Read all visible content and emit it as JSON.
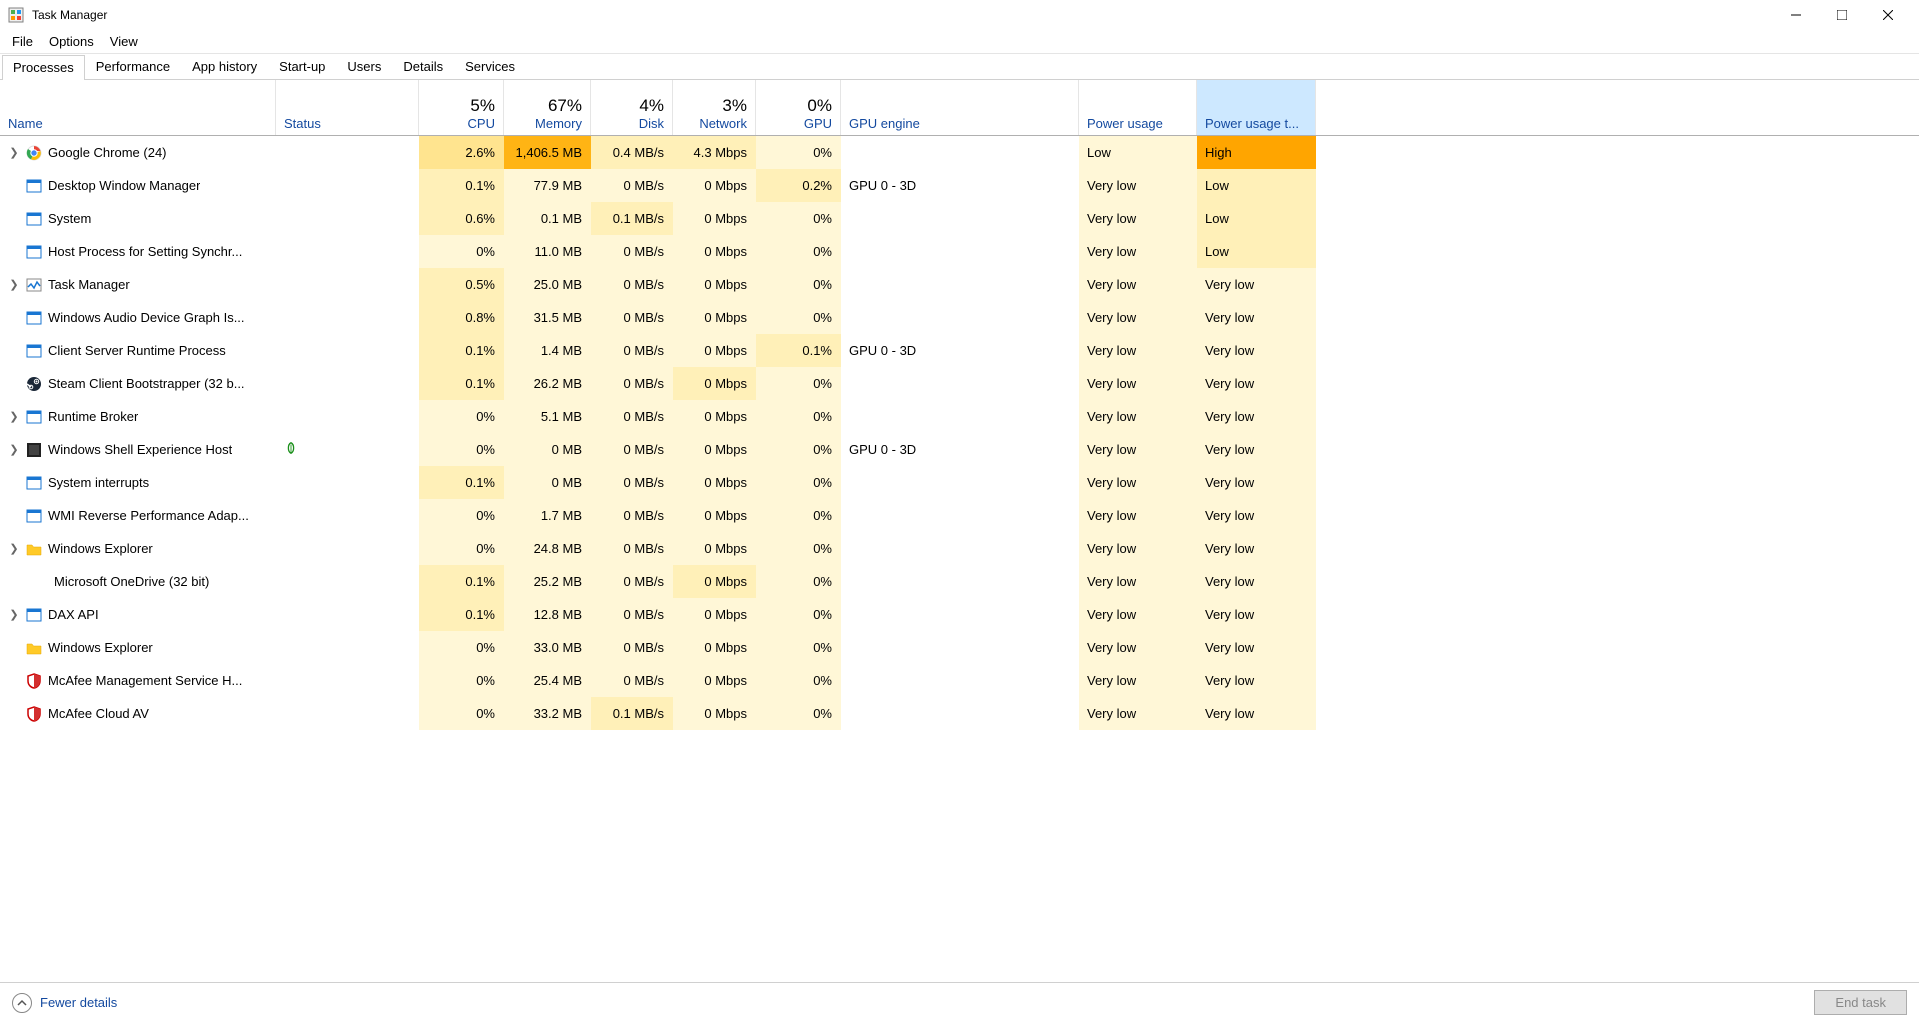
{
  "window": {
    "title": "Task Manager"
  },
  "menu": [
    "File",
    "Options",
    "View"
  ],
  "tabs": [
    "Processes",
    "Performance",
    "App history",
    "Start-up",
    "Users",
    "Details",
    "Services"
  ],
  "activeTab": 0,
  "columns": {
    "name": {
      "label": "Name"
    },
    "status": {
      "label": "Status"
    },
    "cpu": {
      "label": "CPU",
      "pct": "5%"
    },
    "mem": {
      "label": "Memory",
      "pct": "67%"
    },
    "disk": {
      "label": "Disk",
      "pct": "4%"
    },
    "net": {
      "label": "Network",
      "pct": "3%"
    },
    "gpu": {
      "label": "GPU",
      "pct": "0%"
    },
    "gpu_engine": {
      "label": "GPU engine"
    },
    "power": {
      "label": "Power usage"
    },
    "power_trend": {
      "label": "Power usage t..."
    }
  },
  "heat": {
    "colors": {
      "0": "#fffdf5",
      "1": "#fff7d7",
      "2": "#fff0b8",
      "3": "#ffe48f",
      "4": "#ffd866",
      "5": "#ffc83d",
      "6": "#ffb414",
      "hot": "#ffa500"
    }
  },
  "processes": [
    {
      "expandable": true,
      "icon": "chrome",
      "name": "Google Chrome (24)",
      "cpu": "2.6%",
      "cpu_h": 3,
      "mem": "1,406.5 MB",
      "mem_h": 6,
      "disk": "0.4 MB/s",
      "disk_h": 2,
      "net": "4.3 Mbps",
      "net_h": 2,
      "gpu": "0%",
      "gpu_h": 1,
      "gpu_engine": "",
      "power": "Low",
      "power_h": 1,
      "trend": "High",
      "trend_h": "hot"
    },
    {
      "expandable": false,
      "icon": "app",
      "name": "Desktop Window Manager",
      "cpu": "0.1%",
      "cpu_h": 2,
      "mem": "77.9 MB",
      "mem_h": 1,
      "disk": "0 MB/s",
      "disk_h": 1,
      "net": "0 Mbps",
      "net_h": 1,
      "gpu": "0.2%",
      "gpu_h": 2,
      "gpu_engine": "GPU 0 - 3D",
      "power": "Very low",
      "power_h": 1,
      "trend": "Low",
      "trend_h": 2
    },
    {
      "expandable": false,
      "icon": "app",
      "name": "System",
      "cpu": "0.6%",
      "cpu_h": 2,
      "mem": "0.1 MB",
      "mem_h": 1,
      "disk": "0.1 MB/s",
      "disk_h": 2,
      "net": "0 Mbps",
      "net_h": 1,
      "gpu": "0%",
      "gpu_h": 1,
      "gpu_engine": "",
      "power": "Very low",
      "power_h": 1,
      "trend": "Low",
      "trend_h": 2
    },
    {
      "expandable": false,
      "icon": "app",
      "name": "Host Process for Setting Synchr...",
      "cpu": "0%",
      "cpu_h": 1,
      "mem": "11.0 MB",
      "mem_h": 1,
      "disk": "0 MB/s",
      "disk_h": 1,
      "net": "0 Mbps",
      "net_h": 1,
      "gpu": "0%",
      "gpu_h": 1,
      "gpu_engine": "",
      "power": "Very low",
      "power_h": 1,
      "trend": "Low",
      "trend_h": 2
    },
    {
      "expandable": true,
      "icon": "taskmgr",
      "name": "Task Manager",
      "cpu": "0.5%",
      "cpu_h": 2,
      "mem": "25.0 MB",
      "mem_h": 1,
      "disk": "0 MB/s",
      "disk_h": 1,
      "net": "0 Mbps",
      "net_h": 1,
      "gpu": "0%",
      "gpu_h": 1,
      "gpu_engine": "",
      "power": "Very low",
      "power_h": 1,
      "trend": "Very low",
      "trend_h": 1
    },
    {
      "expandable": false,
      "icon": "app",
      "name": "Windows Audio Device Graph Is...",
      "cpu": "0.8%",
      "cpu_h": 2,
      "mem": "31.5 MB",
      "mem_h": 1,
      "disk": "0 MB/s",
      "disk_h": 1,
      "net": "0 Mbps",
      "net_h": 1,
      "gpu": "0%",
      "gpu_h": 1,
      "gpu_engine": "",
      "power": "Very low",
      "power_h": 1,
      "trend": "Very low",
      "trend_h": 1
    },
    {
      "expandable": false,
      "icon": "app",
      "name": "Client Server Runtime Process",
      "cpu": "0.1%",
      "cpu_h": 2,
      "mem": "1.4 MB",
      "mem_h": 1,
      "disk": "0 MB/s",
      "disk_h": 1,
      "net": "0 Mbps",
      "net_h": 1,
      "gpu": "0.1%",
      "gpu_h": 2,
      "gpu_engine": "GPU 0 - 3D",
      "power": "Very low",
      "power_h": 1,
      "trend": "Very low",
      "trend_h": 1
    },
    {
      "expandable": false,
      "icon": "steam",
      "name": "Steam Client Bootstrapper (32 b...",
      "cpu": "0.1%",
      "cpu_h": 2,
      "mem": "26.2 MB",
      "mem_h": 1,
      "disk": "0 MB/s",
      "disk_h": 1,
      "net": "0 Mbps",
      "net_h": 2,
      "gpu": "0%",
      "gpu_h": 1,
      "gpu_engine": "",
      "power": "Very low",
      "power_h": 1,
      "trend": "Very low",
      "trend_h": 1
    },
    {
      "expandable": true,
      "icon": "app",
      "name": "Runtime Broker",
      "cpu": "0%",
      "cpu_h": 1,
      "mem": "5.1 MB",
      "mem_h": 1,
      "disk": "0 MB/s",
      "disk_h": 1,
      "net": "0 Mbps",
      "net_h": 1,
      "gpu": "0%",
      "gpu_h": 1,
      "gpu_engine": "",
      "power": "Very low",
      "power_h": 1,
      "trend": "Very low",
      "trend_h": 1
    },
    {
      "expandable": true,
      "icon": "shell",
      "name": "Windows Shell Experience Host",
      "status_icon": "leaf",
      "cpu": "0%",
      "cpu_h": 1,
      "mem": "0 MB",
      "mem_h": 1,
      "disk": "0 MB/s",
      "disk_h": 1,
      "net": "0 Mbps",
      "net_h": 1,
      "gpu": "0%",
      "gpu_h": 1,
      "gpu_engine": "GPU 0 - 3D",
      "power": "Very low",
      "power_h": 1,
      "trend": "Very low",
      "trend_h": 1
    },
    {
      "expandable": false,
      "icon": "app",
      "name": "System interrupts",
      "cpu": "0.1%",
      "cpu_h": 2,
      "mem": "0 MB",
      "mem_h": 1,
      "disk": "0 MB/s",
      "disk_h": 1,
      "net": "0 Mbps",
      "net_h": 1,
      "gpu": "0%",
      "gpu_h": 1,
      "gpu_engine": "",
      "power": "Very low",
      "power_h": 1,
      "trend": "Very low",
      "trend_h": 1
    },
    {
      "expandable": false,
      "icon": "app",
      "name": "WMI Reverse Performance Adap...",
      "cpu": "0%",
      "cpu_h": 1,
      "mem": "1.7 MB",
      "mem_h": 1,
      "disk": "0 MB/s",
      "disk_h": 1,
      "net": "0 Mbps",
      "net_h": 1,
      "gpu": "0%",
      "gpu_h": 1,
      "gpu_engine": "",
      "power": "Very low",
      "power_h": 1,
      "trend": "Very low",
      "trend_h": 1
    },
    {
      "expandable": true,
      "icon": "explorer",
      "name": "Windows Explorer",
      "cpu": "0%",
      "cpu_h": 1,
      "mem": "24.8 MB",
      "mem_h": 1,
      "disk": "0 MB/s",
      "disk_h": 1,
      "net": "0 Mbps",
      "net_h": 1,
      "gpu": "0%",
      "gpu_h": 1,
      "gpu_engine": "",
      "power": "Very low",
      "power_h": 1,
      "trend": "Very low",
      "trend_h": 1
    },
    {
      "expandable": false,
      "icon": "none",
      "name": "Microsoft OneDrive (32 bit)",
      "cpu": "0.1%",
      "cpu_h": 2,
      "mem": "25.2 MB",
      "mem_h": 1,
      "disk": "0 MB/s",
      "disk_h": 1,
      "net": "0 Mbps",
      "net_h": 2,
      "gpu": "0%",
      "gpu_h": 1,
      "gpu_engine": "",
      "power": "Very low",
      "power_h": 1,
      "trend": "Very low",
      "trend_h": 1
    },
    {
      "expandable": true,
      "icon": "app",
      "name": "DAX API",
      "cpu": "0.1%",
      "cpu_h": 2,
      "mem": "12.8 MB",
      "mem_h": 1,
      "disk": "0 MB/s",
      "disk_h": 1,
      "net": "0 Mbps",
      "net_h": 1,
      "gpu": "0%",
      "gpu_h": 1,
      "gpu_engine": "",
      "power": "Very low",
      "power_h": 1,
      "trend": "Very low",
      "trend_h": 1
    },
    {
      "expandable": false,
      "icon": "explorer",
      "name": "Windows Explorer",
      "cpu": "0%",
      "cpu_h": 1,
      "mem": "33.0 MB",
      "mem_h": 1,
      "disk": "0 MB/s",
      "disk_h": 1,
      "net": "0 Mbps",
      "net_h": 1,
      "gpu": "0%",
      "gpu_h": 1,
      "gpu_engine": "",
      "power": "Very low",
      "power_h": 1,
      "trend": "Very low",
      "trend_h": 1
    },
    {
      "expandable": false,
      "icon": "mcafee",
      "name": "McAfee Management Service H...",
      "cpu": "0%",
      "cpu_h": 1,
      "mem": "25.4 MB",
      "mem_h": 1,
      "disk": "0 MB/s",
      "disk_h": 1,
      "net": "0 Mbps",
      "net_h": 1,
      "gpu": "0%",
      "gpu_h": 1,
      "gpu_engine": "",
      "power": "Very low",
      "power_h": 1,
      "trend": "Very low",
      "trend_h": 1
    },
    {
      "expandable": false,
      "icon": "mcafee",
      "name": "McAfee Cloud AV",
      "cpu": "0%",
      "cpu_h": 1,
      "mem": "33.2 MB",
      "mem_h": 1,
      "disk": "0.1 MB/s",
      "disk_h": 2,
      "net": "0 Mbps",
      "net_h": 1,
      "gpu": "0%",
      "gpu_h": 1,
      "gpu_engine": "",
      "power": "Very low",
      "power_h": 1,
      "trend": "Very low",
      "trend_h": 1
    }
  ],
  "footer": {
    "fewer_details": "Fewer details",
    "end_task": "End task"
  },
  "icons": {
    "chrome": {
      "type": "chrome"
    },
    "app": {
      "type": "generic-app"
    },
    "taskmgr": {
      "type": "taskmgr"
    },
    "steam": {
      "type": "steam"
    },
    "shell": {
      "type": "shell"
    },
    "explorer": {
      "type": "folder"
    },
    "mcafee": {
      "type": "shield-red"
    },
    "none": {
      "type": "blank"
    }
  }
}
